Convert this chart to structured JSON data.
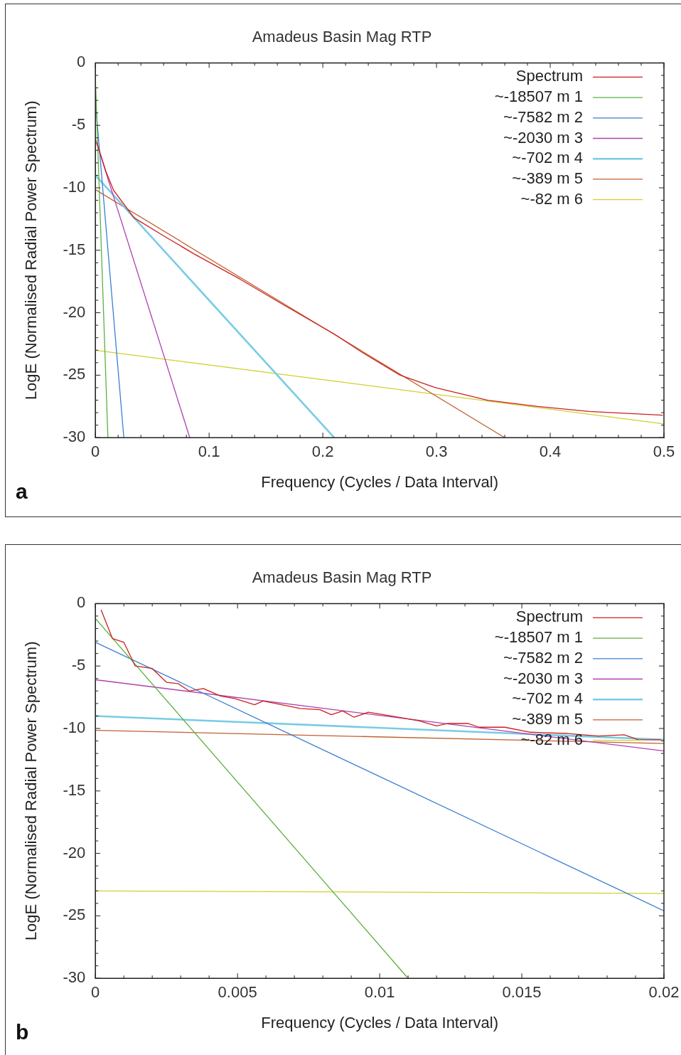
{
  "chart_data": [
    {
      "type": "line",
      "title": "Amadeus Basin Mag RTP",
      "xlabel": "Frequency (Cycles / Data Interval)",
      "ylabel": "LogE (Normalised Radial Power Spectrum)",
      "annotations": [
        "a"
      ],
      "legend": "top right",
      "grid": false,
      "xlim": [
        0,
        0.5
      ],
      "xticks": [
        0,
        0.1,
        0.2,
        0.3,
        0.4,
        0.5
      ],
      "ylim": [
        -30,
        0
      ],
      "yticks": [
        0,
        -5,
        -10,
        -15,
        -20,
        -25,
        -30
      ],
      "series": [
        {
          "name": "Spectrum",
          "color": "#cc2020",
          "x": [
            0.0013,
            0.0093,
            0.016,
            0.034,
            0.061,
            0.087,
            0.127,
            0.166,
            0.21,
            0.235,
            0.268,
            0.299,
            0.345,
            0.389,
            0.434,
            0.499
          ],
          "values": [
            -6.4,
            -8.7,
            -10.2,
            -12.4,
            -13.9,
            -15.3,
            -17.3,
            -19.4,
            -21.7,
            -23.2,
            -25.0,
            -26.0,
            -27.0,
            -27.5,
            -27.9,
            -28.2
          ]
        },
        {
          "name": "~-18507 m 1",
          "color": "#5cb040",
          "x": [
            0,
            0.011
          ],
          "values": [
            -1.2,
            -30
          ]
        },
        {
          "name": "~-7582 m 2",
          "color": "#3a7fd0",
          "x": [
            0,
            0.025
          ],
          "values": [
            -3.1,
            -30
          ]
        },
        {
          "name": "~-2030 m 3",
          "color": "#b040b0",
          "x": [
            0,
            0.083
          ],
          "values": [
            -6.1,
            -30
          ]
        },
        {
          "name": "~-702 m 4",
          "color": "#78cce4",
          "x": [
            0,
            0.21
          ],
          "values": [
            -9.0,
            -30
          ]
        },
        {
          "name": "~-389 m 5",
          "color": "#c06030",
          "x": [
            0,
            0.36
          ],
          "values": [
            -10.15,
            -30
          ]
        },
        {
          "name": "~-82 m 6",
          "color": "#d0d030",
          "x": [
            0,
            0.5
          ],
          "values": [
            -23.0,
            -28.9
          ]
        }
      ]
    },
    {
      "type": "line",
      "title": "Amadeus Basin Mag RTP",
      "xlabel": "Frequency (Cycles / Data Interval)",
      "ylabel": "LogE (Normalised Radial Power Spectrum)",
      "annotations": [
        "b"
      ],
      "legend": "top right",
      "grid": false,
      "xlim": [
        0,
        0.02
      ],
      "xticks": [
        0,
        0.005,
        0.01,
        0.015,
        0.02
      ],
      "ylim": [
        -30,
        0
      ],
      "yticks": [
        0,
        -5,
        -10,
        -15,
        -20,
        -25,
        -30
      ],
      "series": [
        {
          "name": "Spectrum",
          "color": "#cc2020",
          "x": [
            0.0002,
            0.0006,
            0.001,
            0.0014,
            0.002,
            0.0025,
            0.0029,
            0.0033,
            0.0038,
            0.0044,
            0.0049,
            0.0056,
            0.0059,
            0.0072,
            0.0079,
            0.0083,
            0.0087,
            0.0091,
            0.0096,
            0.0104,
            0.0114,
            0.012,
            0.0124,
            0.0131,
            0.0135,
            0.0144,
            0.0153,
            0.0166,
            0.0177,
            0.0186,
            0.0191,
            0.0199
          ],
          "values": [
            -0.5,
            -2.8,
            -3.1,
            -5.0,
            -5.2,
            -6.3,
            -6.4,
            -7.0,
            -6.8,
            -7.4,
            -7.6,
            -8.1,
            -7.8,
            -8.4,
            -8.5,
            -8.9,
            -8.6,
            -9.1,
            -8.7,
            -9.0,
            -9.4,
            -9.8,
            -9.6,
            -9.6,
            -9.9,
            -9.9,
            -10.3,
            -10.4,
            -10.6,
            -10.5,
            -10.9,
            -10.9
          ]
        },
        {
          "name": "~-18507 m 1",
          "color": "#5cb040",
          "x": [
            0,
            0.011
          ],
          "values": [
            -1.2,
            -30
          ]
        },
        {
          "name": "~-7582 m 2",
          "color": "#3a7fd0",
          "x": [
            0,
            0.02
          ],
          "values": [
            -3.1,
            -24.6
          ]
        },
        {
          "name": "~-2030 m 3",
          "color": "#b040b0",
          "x": [
            0,
            0.02
          ],
          "values": [
            -6.1,
            -11.8
          ]
        },
        {
          "name": "~-702 m 4",
          "color": "#78cce4",
          "x": [
            0,
            0.02
          ],
          "values": [
            -9.0,
            -10.9
          ]
        },
        {
          "name": "~-389 m 5",
          "color": "#c06030",
          "x": [
            0,
            0.02
          ],
          "values": [
            -10.15,
            -11.2
          ]
        },
        {
          "name": "~-82 m 6",
          "color": "#d0d030",
          "x": [
            0,
            0.02
          ],
          "values": [
            -23.0,
            -23.2
          ]
        }
      ]
    }
  ]
}
